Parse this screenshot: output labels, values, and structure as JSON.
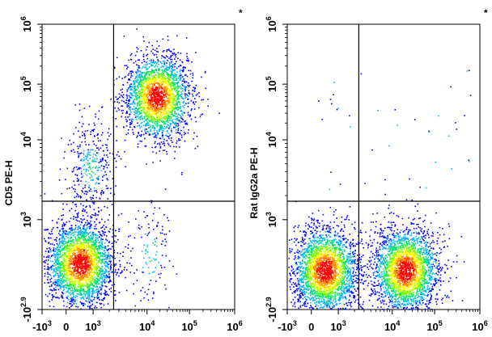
{
  "chart_data": [
    {
      "type": "scatter",
      "subtype": "flow-cytometry-density-dot-plot",
      "ylabel": "CD5 PE-H",
      "xlabel": "",
      "marker": "*",
      "x_scale": "biexponential",
      "y_scale": "biexponential",
      "xlim": [
        -1000,
        1000000
      ],
      "ylim": [
        -794,
        1000000
      ],
      "x_ticks": [
        {
          "base": "-10",
          "exp": "3",
          "value": -1000
        },
        {
          "base": "0",
          "exp": "",
          "value": 0
        },
        {
          "base": "10",
          "exp": "3",
          "value": 1000
        },
        {
          "base": "10",
          "exp": "4",
          "value": 10000
        },
        {
          "base": "10",
          "exp": "5",
          "value": 100000
        },
        {
          "base": "10",
          "exp": "6",
          "value": 1000000
        }
      ],
      "y_ticks": [
        {
          "base": "-10",
          "exp": "2.9",
          "value": -794
        },
        {
          "base": "10",
          "exp": "3",
          "value": 1000
        },
        {
          "base": "10",
          "exp": "4",
          "value": 10000
        },
        {
          "base": "10",
          "exp": "5",
          "value": 100000
        },
        {
          "base": "10",
          "exp": "6",
          "value": 1000000
        }
      ],
      "gates": {
        "x": 2400,
        "y": 1700
      },
      "populations": [
        {
          "name": "",
          "x_center": 500,
          "y_center": 350,
          "n_points": 2600,
          "quadrant": "lower-left"
        },
        {
          "name": "",
          "x_center": 17000,
          "y_center": 60000,
          "n_points": 2300,
          "quadrant": "upper-right"
        },
        {
          "name": "",
          "x_center": 900,
          "y_center": 4500,
          "n_points": 350,
          "quadrant": "bridge"
        },
        {
          "name": "",
          "x_center": 12000,
          "y_center": 500,
          "n_points": 120,
          "quadrant": "lower-right"
        }
      ]
    },
    {
      "type": "scatter",
      "subtype": "flow-cytometry-density-dot-plot",
      "ylabel": "Rat IgG2a PE-H",
      "xlabel": "",
      "marker": "*",
      "x_scale": "biexponential",
      "y_scale": "biexponential",
      "xlim": [
        -1000,
        1000000
      ],
      "ylim": [
        -794,
        1000000
      ],
      "x_ticks": [
        {
          "base": "-10",
          "exp": "3",
          "value": -1000
        },
        {
          "base": "0",
          "exp": "",
          "value": 0
        },
        {
          "base": "10",
          "exp": "3",
          "value": 1000
        },
        {
          "base": "10",
          "exp": "4",
          "value": 10000
        },
        {
          "base": "10",
          "exp": "5",
          "value": 100000
        },
        {
          "base": "10",
          "exp": "6",
          "value": 1000000
        }
      ],
      "y_ticks": [
        {
          "base": "-10",
          "exp": "2.9",
          "value": -794
        },
        {
          "base": "10",
          "exp": "3",
          "value": 1000
        },
        {
          "base": "10",
          "exp": "4",
          "value": 10000
        },
        {
          "base": "10",
          "exp": "5",
          "value": 100000
        },
        {
          "base": "10",
          "exp": "6",
          "value": 1000000
        }
      ],
      "gates": {
        "x": 2400,
        "y": 1700
      },
      "populations": [
        {
          "name": "",
          "x_center": 500,
          "y_center": 250,
          "n_points": 2600,
          "quadrant": "lower-left"
        },
        {
          "name": "",
          "x_center": 20000,
          "y_center": 250,
          "n_points": 2600,
          "quadrant": "lower-right"
        },
        {
          "name": "",
          "x_center": 5000,
          "y_center": 20000,
          "n_points": 40,
          "quadrant": "sparse"
        }
      ]
    }
  ],
  "colors": {
    "density_scale": [
      "#0000ff",
      "#00b4ff",
      "#00e070",
      "#7cfc00",
      "#ffff00",
      "#ff8c00",
      "#ff0000"
    ],
    "gate_line": "#000000",
    "frame": "#000000"
  }
}
